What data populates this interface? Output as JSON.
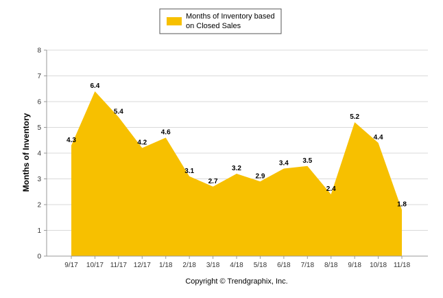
{
  "chart_data": {
    "type": "area",
    "categories": [
      "9/17",
      "10/17",
      "11/17",
      "12/17",
      "1/18",
      "2/18",
      "3/18",
      "4/18",
      "5/18",
      "6/18",
      "7/18",
      "8/18",
      "9/18",
      "10/18",
      "11/18"
    ],
    "series": [
      {
        "name": "Months of Inventory based on Closed Sales",
        "values": [
          4.3,
          6.4,
          5.4,
          4.2,
          4.6,
          3.1,
          2.7,
          3.2,
          2.9,
          3.4,
          3.5,
          2.4,
          5.2,
          4.4,
          1.8
        ],
        "data_labels": [
          "4.3",
          "6.4",
          "5.4",
          "4.2",
          "4.6",
          "3.1",
          "2.7",
          "3.2",
          "2.9",
          "3.4",
          "3.5",
          "2.4",
          "5.2",
          "4.4",
          "1.8"
        ]
      }
    ],
    "legend": {
      "line1": "Months of Inventory based",
      "line2": "on Closed Sales",
      "placement": "top-center"
    },
    "ylabel": "Months of Inventory",
    "xlabel": "",
    "ylim": [
      0,
      8
    ],
    "yticks": [
      "0",
      "1",
      "2",
      "3",
      "4",
      "5",
      "6",
      "7",
      "8"
    ],
    "grid": true,
    "colors": {
      "fill": "#F7C000",
      "grid": "#D9D9D9",
      "axis": "#999999"
    }
  },
  "footer": {
    "copyright": "Copyright © Trendgraphix, Inc."
  }
}
